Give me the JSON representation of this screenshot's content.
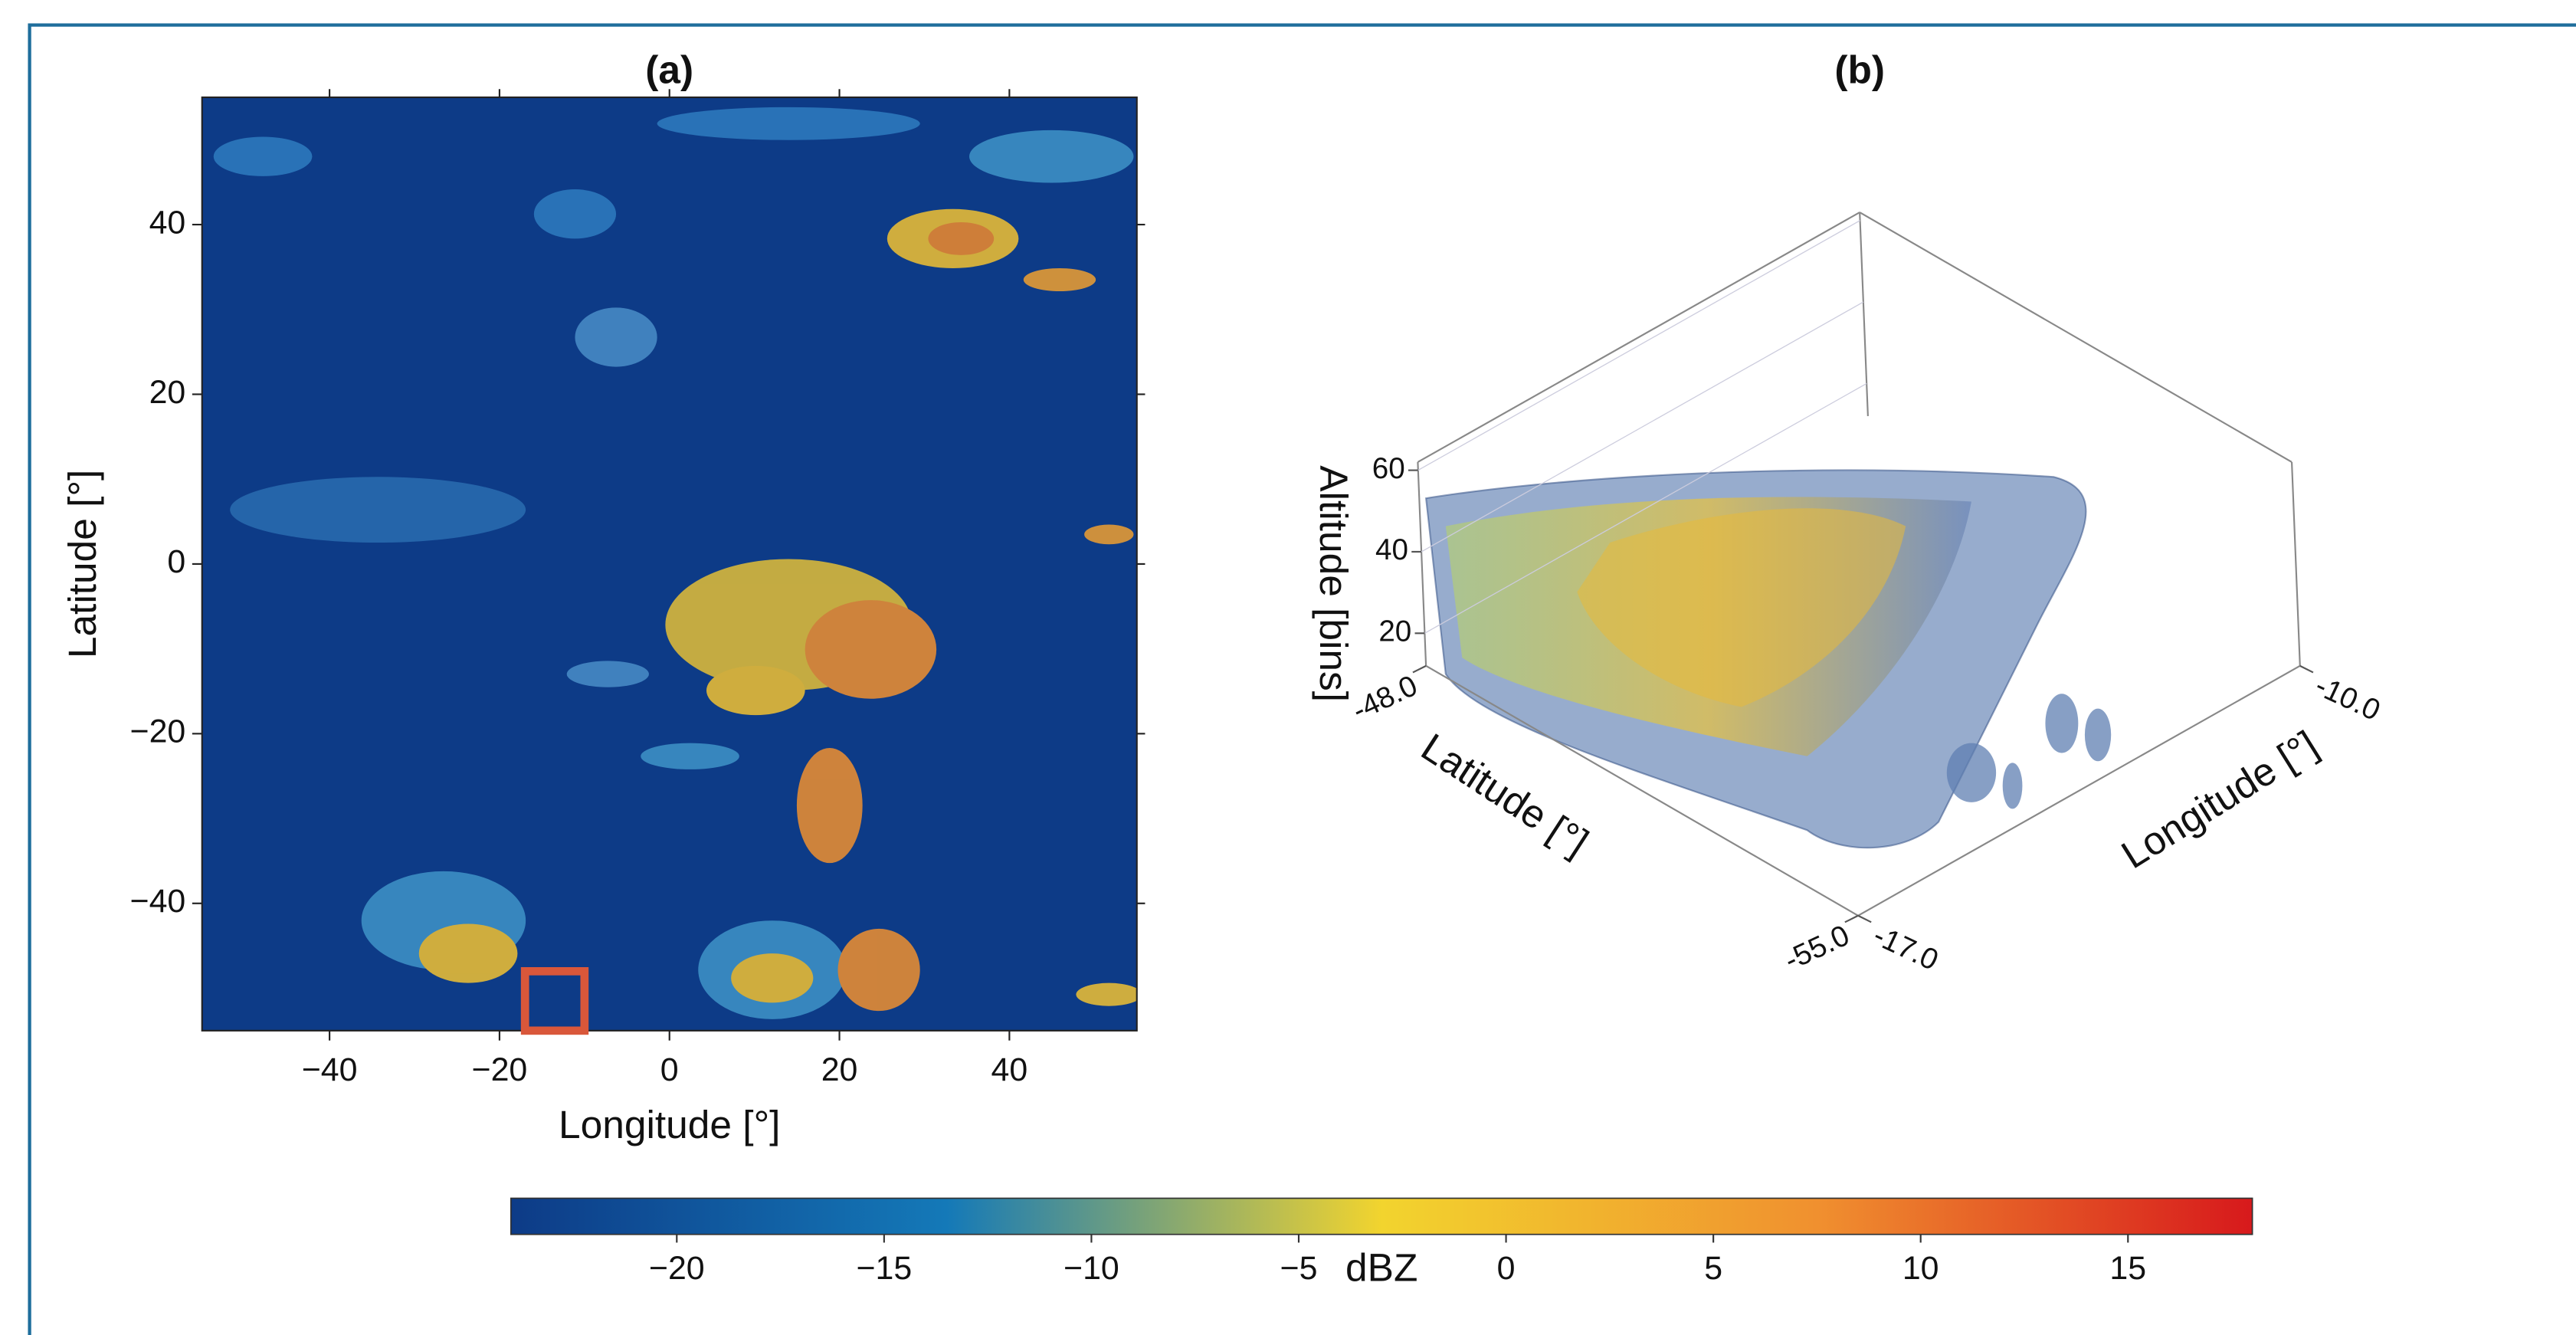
{
  "chart_data": [
    {
      "type": "heatmap",
      "title": "(a)",
      "xlabel": "Longitude [°]",
      "ylabel": "Latitude [°]",
      "xlim": [
        -55,
        55
      ],
      "ylim": [
        -55,
        55
      ],
      "xticks": [
        {
          "value": -40,
          "label": "−40"
        },
        {
          "value": -20,
          "label": "−20"
        },
        0,
        20,
        40
      ],
      "yticks": [
        {
          "value": -40,
          "label": "−40"
        },
        {
          "value": -20,
          "label": "−20"
        },
        0,
        20,
        40
      ],
      "background_color": "#0d3b87",
      "highlight": {
        "xlim": [
          -17,
          -10
        ],
        "ylim": [
          -55,
          -48
        ],
        "color": "#d9573a"
      }
    },
    {
      "type": "surface3d",
      "title": "(b)",
      "xlabel": "Longitude [°]",
      "ylabel": "Latitude [°]",
      "zlabel": "Altitude [bins]",
      "xlim": [
        -17,
        -10
      ],
      "ylim": [
        -55,
        -48
      ],
      "zlim": [
        12,
        62
      ],
      "xticks": [
        {
          "value": -17,
          "label": "-17.0"
        },
        {
          "value": -10,
          "label": "-10.0"
        }
      ],
      "yticks": [
        {
          "value": -55,
          "label": "-55.0"
        },
        {
          "value": -48,
          "label": "-48.0"
        }
      ],
      "zticks": [
        20,
        40,
        60
      ]
    },
    {
      "type": "colorbar",
      "label": "dBZ",
      "clim": [
        -24,
        18
      ],
      "ticks": [
        {
          "value": -20,
          "label": "−20"
        },
        {
          "value": -15,
          "label": "−15"
        },
        {
          "value": -10,
          "label": "−10"
        },
        {
          "value": -5,
          "label": "−5"
        },
        0,
        5,
        10,
        15
      ],
      "colormap": [
        "#0d3b87",
        "#1479b8",
        "#f2d42e",
        "#f0902f",
        "#d7191c"
      ]
    }
  ]
}
